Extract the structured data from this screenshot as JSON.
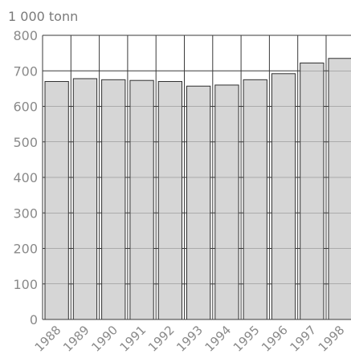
{
  "chart_data": {
    "type": "bar",
    "unit_label": "1 000 tonn",
    "categories": [
      "1988",
      "1989",
      "1990",
      "1991",
      "1992",
      "1993",
      "1994",
      "1995",
      "1996",
      "1997",
      "1998"
    ],
    "values": [
      670,
      678,
      675,
      673,
      670,
      657,
      660,
      675,
      692,
      722,
      735
    ],
    "y_ticks": [
      "0",
      "100",
      "200",
      "300",
      "400",
      "500",
      "600",
      "700",
      "800"
    ],
    "ylim": [
      0,
      800
    ],
    "grid": true,
    "bar_color": "#d6d6d6",
    "edge_color": "#2f2f2f"
  }
}
